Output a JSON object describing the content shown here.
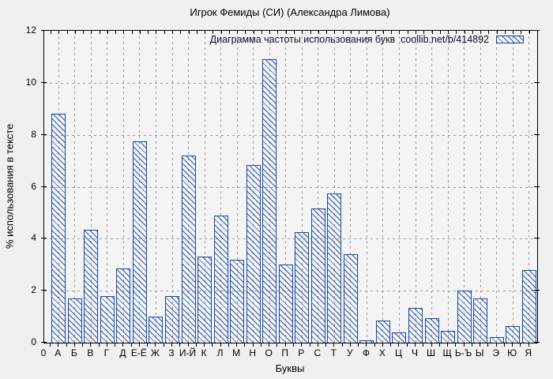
{
  "title": "Игрок Фемиды (СИ) (Александра Лимова)",
  "legend": {
    "label": "Диаграмма частоты использования букв  coollib.net/b/414892"
  },
  "axes": {
    "y_label": "% использования в тексте",
    "x_label": "Буквы",
    "x_origin_label": "0",
    "y_ticks": [
      0,
      2,
      4,
      6,
      8,
      10,
      12
    ]
  },
  "colors": {
    "bar_blue": "#1648a8",
    "figure_background": "#f0f0f0",
    "plot_background": "#f4f4f4",
    "grid_gray": "#9a9a9a",
    "axis_black": "#000000"
  },
  "chart_data": {
    "type": "bar",
    "title": "Игрок Фемиды (СИ) (Александра Лимова)",
    "xlabel": "Буквы",
    "ylabel": "% использования в тексте",
    "ylim": [
      0,
      12
    ],
    "y_ticks": [
      0,
      2,
      4,
      6,
      8,
      10,
      12
    ],
    "grid": "dashed, horizontal at even values and vertical at each category",
    "legend": "Диаграмма частоты использования букв  coollib.net/b/414892",
    "legend_position": "top-right inside plot",
    "bar_style": "blue outline with diagonal hatch fill",
    "categories": [
      "А",
      "Б",
      "В",
      "Г",
      "Д",
      "Е-Ё",
      "Ж",
      "З",
      "И-Й",
      "К",
      "Л",
      "М",
      "Н",
      "О",
      "П",
      "Р",
      "С",
      "Т",
      "У",
      "Ф",
      "Х",
      "Ц",
      "Ч",
      "Ш",
      "Щ",
      "Ь-Ъ",
      "Ы",
      "Э",
      "Ю",
      "Я"
    ],
    "values": [
      8.8,
      1.7,
      4.35,
      1.8,
      2.85,
      7.75,
      1.0,
      1.8,
      7.2,
      3.3,
      4.9,
      3.2,
      6.85,
      10.9,
      3.0,
      4.25,
      5.15,
      5.75,
      3.4,
      0.1,
      0.85,
      0.4,
      1.35,
      0.95,
      0.45,
      2.0,
      1.7,
      0.2,
      0.65,
      2.8
    ]
  }
}
